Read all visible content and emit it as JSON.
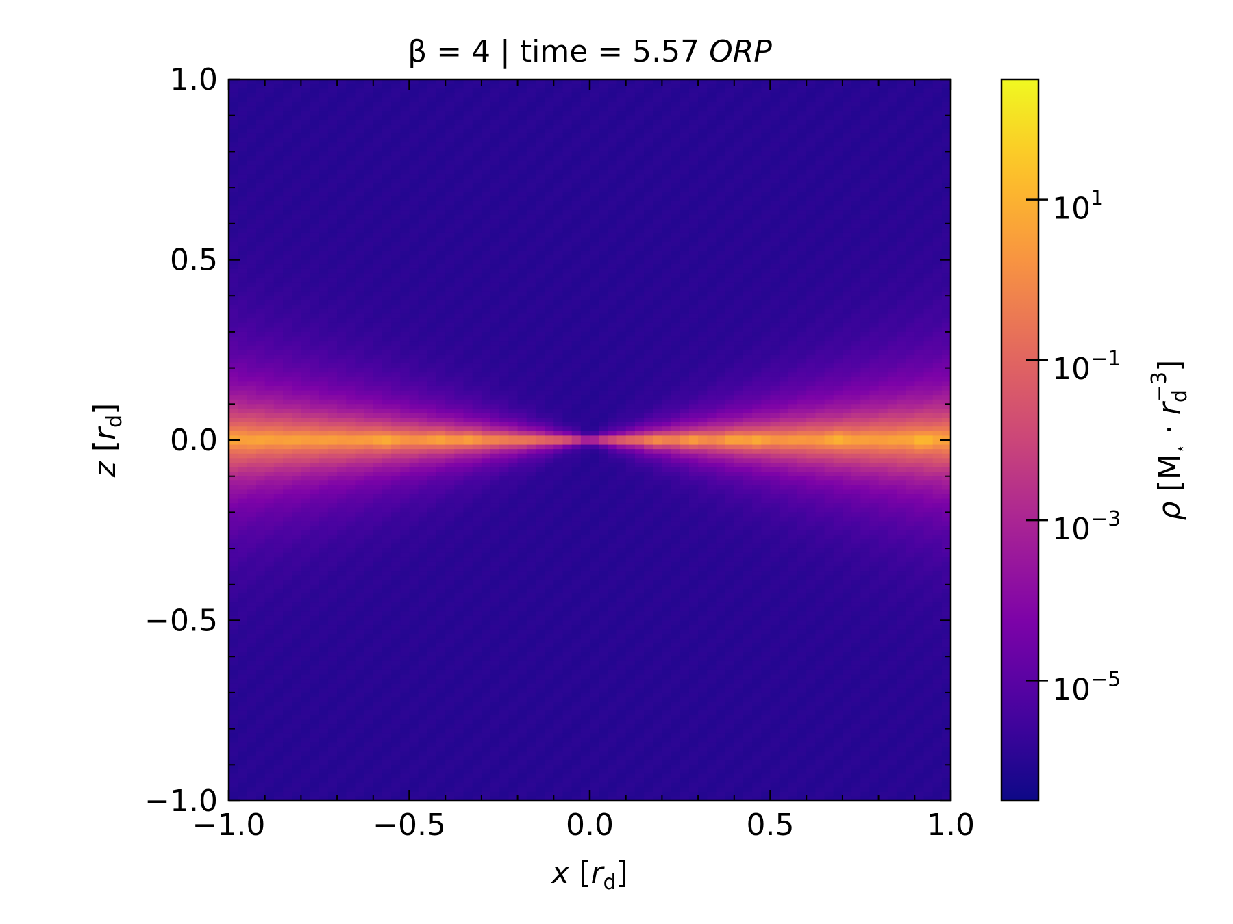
{
  "chart_data": {
    "type": "heatmap",
    "title": {
      "prefix": "β = 4 | time = 5.57 ",
      "italic": "ORP"
    },
    "xlabel": {
      "var": "x",
      "unit": "r",
      "sub": "d"
    },
    "ylabel": {
      "var": "z",
      "unit": "r",
      "sub": "d"
    },
    "xlim": [
      -1.0,
      1.0
    ],
    "ylim": [
      -1.0,
      1.0
    ],
    "xticks": [
      -1.0,
      -0.5,
      0.0,
      0.5,
      1.0
    ],
    "xtick_labels": [
      "−1.0",
      "−0.5",
      "0.0",
      "0.5",
      "1.0"
    ],
    "yticks": [
      -1.0,
      -0.5,
      0.0,
      0.5,
      1.0
    ],
    "ytick_labels": [
      "−1.0",
      "−0.5",
      "0.0",
      "0.5",
      "1.0"
    ],
    "colormap": "plasma",
    "colorbar": {
      "scale": "log",
      "range": [
        -6.5,
        2.5
      ],
      "ticks": [
        1,
        -1,
        -3,
        -5
      ],
      "tick_labels": [
        "1",
        "−1",
        "−3",
        "−5"
      ],
      "tick_base": "10",
      "label": {
        "rho": "ρ",
        "mass": "M",
        "star": "⋆",
        "dot": "·",
        "r": "r",
        "sub": "d",
        "exp": "−3"
      }
    },
    "density_model": {
      "background_log10": -6.0,
      "midplane_log10": 0.5,
      "scale_height_center": 0.006,
      "scale_height_slope": 0.12,
      "clumps_x": [
        -0.57,
        -0.41,
        -0.33,
        0.18,
        0.28,
        0.4,
        0.46,
        0.69,
        0.92
      ]
    }
  }
}
